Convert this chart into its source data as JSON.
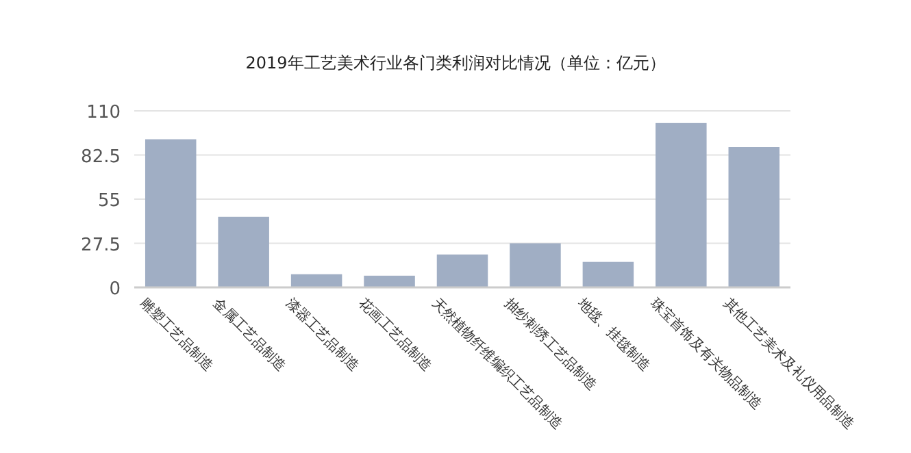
{
  "chart_data": {
    "type": "bar",
    "title": "2019年工艺美术行业各门类利润对比情况（单位：亿元）",
    "categories": [
      "雕塑工艺品制造",
      "金属工艺品制造",
      "漆器工艺品制造",
      "花画工艺品制造",
      "天然植物纤维编织工艺品制造",
      "抽纱刺绣工艺品制造",
      "地毯、挂毯制造",
      "珠宝首饰及有关物品制造",
      "其他工艺美术及礼仪用品制造"
    ],
    "values": [
      92.3,
      44,
      8.2,
      7.3,
      20.5,
      27.5,
      15.9,
      102.4,
      87.4
    ],
    "color": "#a0aec4",
    "ylim": [
      0,
      110
    ],
    "yticks": [
      0,
      27.5,
      55,
      82.5,
      110
    ],
    "grid": "y"
  }
}
